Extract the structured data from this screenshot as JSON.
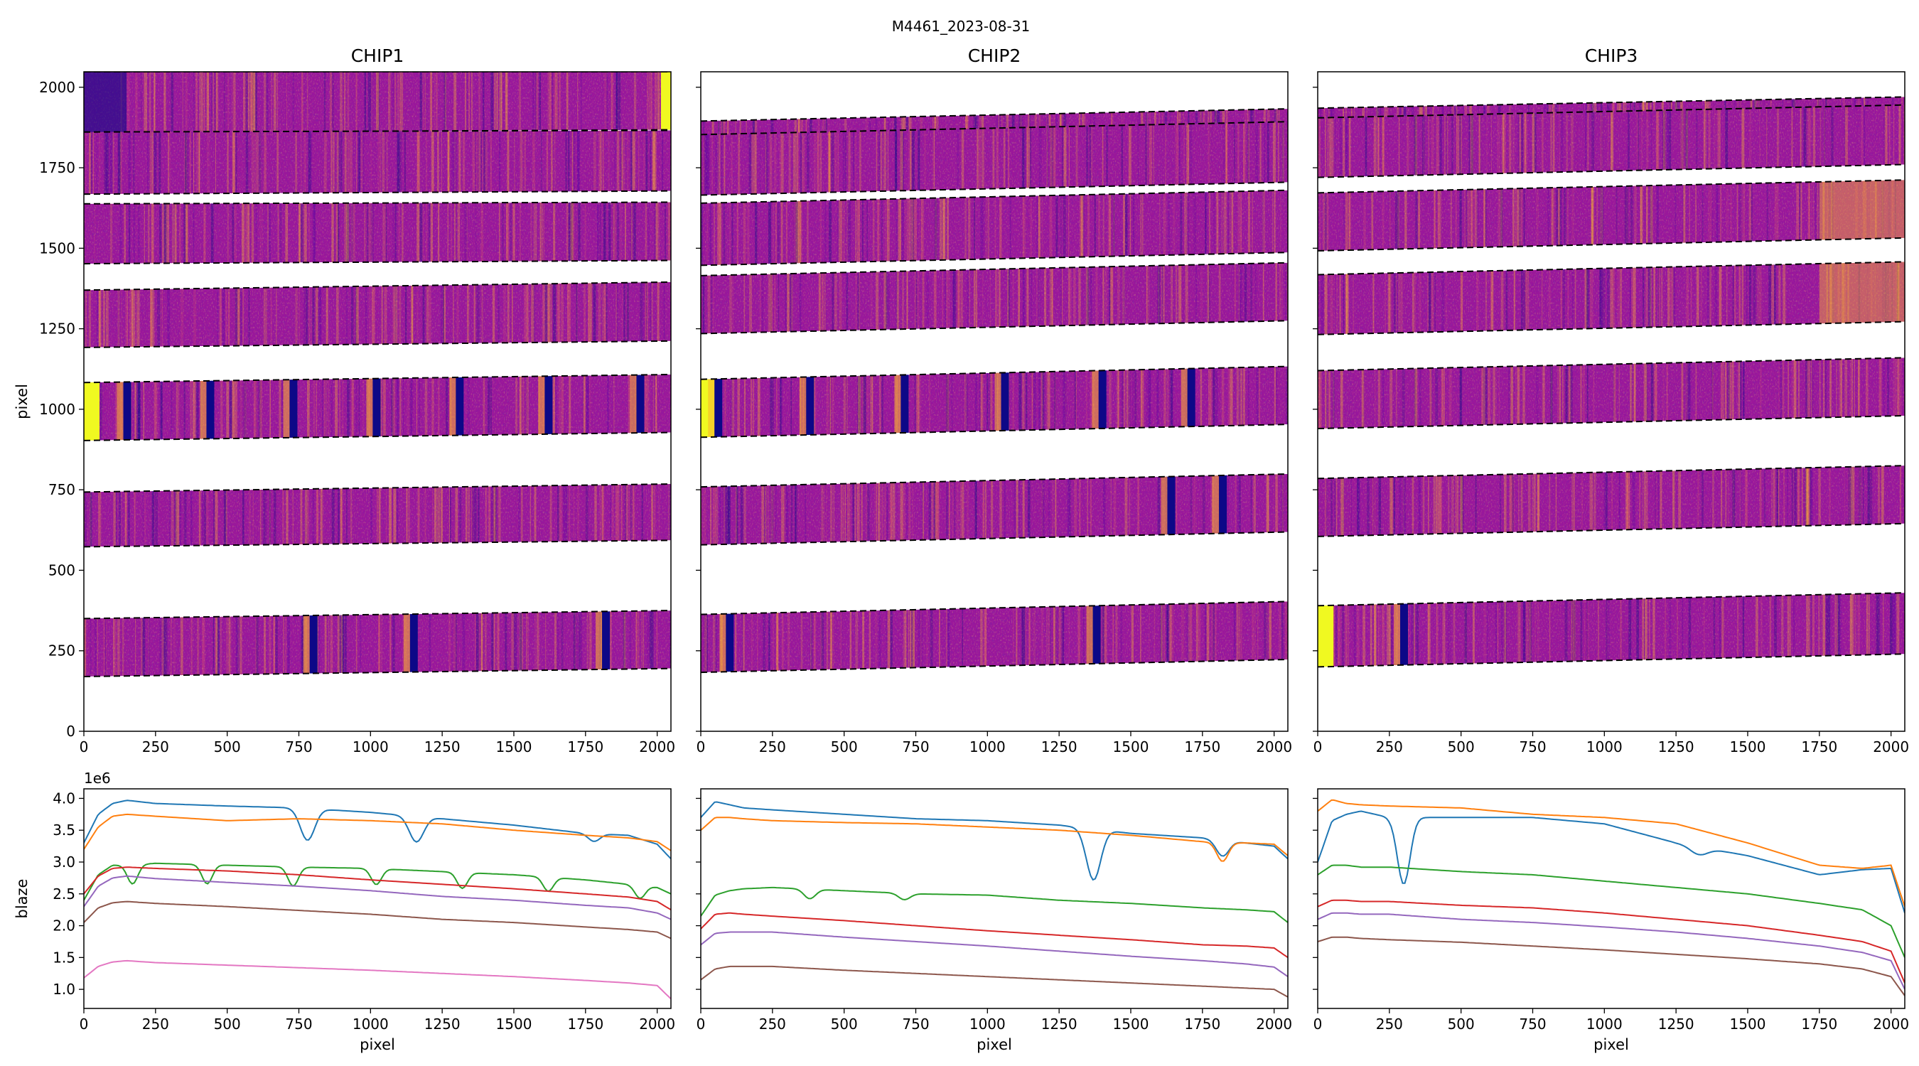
{
  "figure": {
    "suptitle": "M4461_2023-08-31",
    "colormap": [
      "#0d0887",
      "#5b02a3",
      "#9a179b",
      "#cb4678",
      "#eb7852",
      "#fbb32f",
      "#f0f921"
    ],
    "series_colors": [
      "#1f77b4",
      "#ff7f0e",
      "#2ca02c",
      "#d62728",
      "#9467bd",
      "#8c564b",
      "#e377c2"
    ]
  },
  "chart_data": [
    {
      "type": "heatmap",
      "title": "CHIP1",
      "ylabel": "pixel",
      "xlabel": "",
      "xlim": [
        0,
        2048
      ],
      "ylim": [
        0,
        2048
      ],
      "xticks": [
        "0",
        "250",
        "500",
        "750",
        "1000",
        "1250",
        "1500",
        "1750",
        "2000"
      ],
      "yticks": [
        "0",
        "250",
        "500",
        "750",
        "1000",
        "1250",
        "1500",
        "1750",
        "2000"
      ],
      "orders": [
        {
          "top": [
            2048,
            2048
          ],
          "bottom": [
            1858,
            1868
          ]
        },
        {
          "top": [
            1861,
            1866
          ],
          "bottom": [
            1668,
            1678
          ]
        },
        {
          "top": [
            1638,
            1643
          ],
          "bottom": [
            1452,
            1462
          ]
        },
        {
          "top": [
            1370,
            1395
          ],
          "bottom": [
            1192,
            1212
          ]
        },
        {
          "top": [
            1083,
            1108
          ],
          "bottom": [
            903,
            928
          ]
        },
        {
          "top": [
            743,
            768
          ],
          "bottom": [
            573,
            593
          ]
        },
        {
          "top": [
            350,
            375
          ],
          "bottom": [
            170,
            195
          ]
        }
      ],
      "absorption_lines": [
        {
          "order": 4,
          "x": [
            150,
            440,
            730,
            1020,
            1310,
            1620,
            1940
          ]
        },
        {
          "order": 6,
          "x": [
            800,
            1150,
            1820
          ]
        }
      ]
    },
    {
      "type": "heatmap",
      "title": "CHIP2",
      "ylabel": "",
      "xlabel": "",
      "xlim": [
        0,
        2048
      ],
      "ylim": [
        0,
        2048
      ],
      "xticks": [
        "0",
        "250",
        "500",
        "750",
        "1000",
        "1250",
        "1500",
        "1750",
        "2000"
      ],
      "yticks": [],
      "orders": [
        {
          "top": [
            1895,
            1933
          ],
          "bottom": [
            1832,
            1850
          ]
        },
        {
          "top": [
            1853,
            1893
          ],
          "bottom": [
            1665,
            1705
          ]
        },
        {
          "top": [
            1640,
            1680
          ],
          "bottom": [
            1447,
            1487
          ]
        },
        {
          "top": [
            1415,
            1455
          ],
          "bottom": [
            1235,
            1275
          ]
        },
        {
          "top": [
            1093,
            1133
          ],
          "bottom": [
            913,
            953
          ]
        },
        {
          "top": [
            759,
            799
          ],
          "bottom": [
            579,
            619
          ]
        },
        {
          "top": [
            363,
            403
          ],
          "bottom": [
            183,
            223
          ]
        }
      ],
      "absorption_lines": [
        {
          "order": 4,
          "x": [
            60,
            380,
            710,
            1060,
            1400,
            1710
          ]
        },
        {
          "order": 5,
          "x": [
            1640,
            1820
          ]
        },
        {
          "order": 6,
          "x": [
            100,
            1380
          ]
        }
      ]
    },
    {
      "type": "heatmap",
      "title": "CHIP3",
      "ylabel": "",
      "xlabel": "",
      "xlim": [
        0,
        2048
      ],
      "ylim": [
        0,
        2048
      ],
      "xticks": [
        "0",
        "250",
        "500",
        "750",
        "1000",
        "1250",
        "1500",
        "1750",
        "2000"
      ],
      "yticks": [],
      "orders": [
        {
          "top": [
            1935,
            1970
          ],
          "bottom": [
            1890,
            1930
          ]
        },
        {
          "top": [
            1905,
            1945
          ],
          "bottom": [
            1720,
            1760
          ]
        },
        {
          "top": [
            1672,
            1712
          ],
          "bottom": [
            1492,
            1532
          ]
        },
        {
          "top": [
            1418,
            1458
          ],
          "bottom": [
            1232,
            1272
          ]
        },
        {
          "top": [
            1120,
            1160
          ],
          "bottom": [
            940,
            980
          ]
        },
        {
          "top": [
            785,
            825
          ],
          "bottom": [
            605,
            645
          ]
        },
        {
          "top": [
            390,
            430
          ],
          "bottom": [
            200,
            240
          ]
        }
      ],
      "absorption_lines": [
        {
          "order": 6,
          "x": [
            300
          ]
        }
      ]
    },
    {
      "type": "line",
      "title": "",
      "xlabel": "pixel",
      "ylabel": "blaze",
      "offset_text": "1e6",
      "xlim": [
        0,
        2048
      ],
      "ylim": [
        0.7,
        4.15
      ],
      "xticks": [
        "0",
        "250",
        "500",
        "750",
        "1000",
        "1250",
        "1500",
        "1750",
        "2000"
      ],
      "yticks": [
        "1.0",
        "1.5",
        "2.0",
        "2.5",
        "3.0",
        "3.5",
        "4.0"
      ],
      "x": [
        0,
        50,
        100,
        150,
        250,
        500,
        750,
        1000,
        1250,
        1500,
        1750,
        1900,
        2000,
        2048
      ],
      "series": [
        {
          "values": [
            3.3,
            3.75,
            3.92,
            3.97,
            3.92,
            3.88,
            3.85,
            3.78,
            3.68,
            3.58,
            3.45,
            3.42,
            3.28,
            3.05
          ],
          "dips": [
            [
              780,
              0.5,
              25
            ],
            [
              1160,
              0.4,
              25
            ],
            [
              1780,
              0.12,
              20
            ]
          ]
        },
        {
          "values": [
            3.2,
            3.55,
            3.72,
            3.75,
            3.72,
            3.65,
            3.68,
            3.65,
            3.6,
            3.5,
            3.42,
            3.38,
            3.32,
            3.18
          ],
          "dips": []
        },
        {
          "values": [
            2.4,
            2.8,
            2.95,
            2.95,
            2.98,
            2.95,
            2.92,
            2.9,
            2.85,
            2.8,
            2.72,
            2.65,
            2.6,
            2.5
          ],
          "dips": [
            [
              170,
              0.3,
              18
            ],
            [
              430,
              0.3,
              18
            ],
            [
              730,
              0.3,
              18
            ],
            [
              1020,
              0.25,
              18
            ],
            [
              1320,
              0.25,
              18
            ],
            [
              1620,
              0.22,
              18
            ],
            [
              1940,
              0.2,
              18
            ]
          ]
        },
        {
          "values": [
            2.5,
            2.78,
            2.9,
            2.92,
            2.9,
            2.86,
            2.8,
            2.72,
            2.65,
            2.58,
            2.5,
            2.45,
            2.38,
            2.25
          ],
          "dips": []
        },
        {
          "values": [
            2.3,
            2.62,
            2.75,
            2.78,
            2.74,
            2.68,
            2.62,
            2.55,
            2.46,
            2.4,
            2.32,
            2.28,
            2.2,
            2.1
          ],
          "dips": []
        },
        {
          "values": [
            2.05,
            2.28,
            2.36,
            2.38,
            2.35,
            2.3,
            2.24,
            2.18,
            2.1,
            2.05,
            1.98,
            1.94,
            1.9,
            1.8
          ],
          "dips": []
        },
        {
          "values": [
            1.18,
            1.36,
            1.43,
            1.45,
            1.42,
            1.38,
            1.34,
            1.3,
            1.25,
            1.2,
            1.14,
            1.1,
            1.06,
            0.85
          ],
          "dips": []
        }
      ]
    },
    {
      "type": "line",
      "title": "",
      "xlabel": "pixel",
      "ylabel": "",
      "xlim": [
        0,
        2048
      ],
      "ylim": [
        0.7,
        4.15
      ],
      "xticks": [
        "0",
        "250",
        "500",
        "750",
        "1000",
        "1250",
        "1500",
        "1750",
        "2000"
      ],
      "yticks": [],
      "x": [
        0,
        50,
        100,
        150,
        250,
        500,
        750,
        1000,
        1250,
        1500,
        1750,
        1900,
        2000,
        2048
      ],
      "series": [
        {
          "values": [
            3.7,
            3.95,
            3.9,
            3.85,
            3.82,
            3.75,
            3.68,
            3.65,
            3.58,
            3.45,
            3.38,
            3.3,
            3.25,
            3.05
          ],
          "dips": [
            [
              1370,
              0.8,
              25
            ],
            [
              1820,
              0.25,
              22
            ]
          ]
        },
        {
          "values": [
            3.5,
            3.7,
            3.7,
            3.68,
            3.65,
            3.62,
            3.6,
            3.55,
            3.5,
            3.42,
            3.32,
            3.3,
            3.28,
            3.1
          ],
          "dips": [
            [
              1820,
              0.3,
              20
            ]
          ]
        },
        {
          "values": [
            2.15,
            2.48,
            2.55,
            2.58,
            2.6,
            2.55,
            2.5,
            2.48,
            2.4,
            2.35,
            2.28,
            2.25,
            2.22,
            2.05
          ],
          "dips": [
            [
              380,
              0.15,
              20
            ],
            [
              710,
              0.1,
              20
            ]
          ]
        },
        {
          "values": [
            1.95,
            2.18,
            2.2,
            2.18,
            2.15,
            2.08,
            2.0,
            1.92,
            1.85,
            1.78,
            1.7,
            1.68,
            1.65,
            1.5
          ],
          "dips": []
        },
        {
          "values": [
            1.7,
            1.88,
            1.9,
            1.9,
            1.9,
            1.82,
            1.75,
            1.68,
            1.6,
            1.52,
            1.45,
            1.4,
            1.35,
            1.2
          ],
          "dips": []
        },
        {
          "values": [
            1.15,
            1.32,
            1.36,
            1.36,
            1.36,
            1.3,
            1.25,
            1.2,
            1.15,
            1.1,
            1.05,
            1.02,
            1.0,
            0.88
          ],
          "dips": []
        }
      ]
    },
    {
      "type": "line",
      "title": "",
      "xlabel": "pixel",
      "ylabel": "",
      "xlim": [
        0,
        2048
      ],
      "ylim": [
        0.7,
        4.15
      ],
      "xticks": [
        "0",
        "250",
        "500",
        "750",
        "1000",
        "1250",
        "1500",
        "1750",
        "2000"
      ],
      "yticks": [],
      "x": [
        0,
        50,
        100,
        150,
        250,
        500,
        750,
        1000,
        1250,
        1500,
        1750,
        1900,
        2000,
        2048
      ],
      "series": [
        {
          "values": [
            3.0,
            3.65,
            3.75,
            3.8,
            3.7,
            3.7,
            3.7,
            3.6,
            3.3,
            3.1,
            2.8,
            2.88,
            2.9,
            2.2
          ],
          "dips": [
            [
              300,
              1.05,
              22
            ],
            [
              1330,
              0.12,
              30
            ]
          ]
        },
        {
          "values": [
            3.8,
            3.98,
            3.92,
            3.9,
            3.88,
            3.85,
            3.75,
            3.7,
            3.6,
            3.3,
            2.95,
            2.9,
            2.95,
            2.3
          ],
          "dips": []
        },
        {
          "values": [
            2.8,
            2.95,
            2.95,
            2.92,
            2.92,
            2.85,
            2.8,
            2.7,
            2.6,
            2.5,
            2.35,
            2.25,
            2.0,
            1.5
          ],
          "dips": []
        },
        {
          "values": [
            2.3,
            2.4,
            2.4,
            2.38,
            2.38,
            2.32,
            2.28,
            2.2,
            2.1,
            2.0,
            1.85,
            1.75,
            1.6,
            1.1
          ],
          "dips": []
        },
        {
          "values": [
            2.1,
            2.2,
            2.2,
            2.18,
            2.18,
            2.1,
            2.05,
            1.98,
            1.9,
            1.8,
            1.68,
            1.58,
            1.45,
            1.0
          ],
          "dips": []
        },
        {
          "values": [
            1.75,
            1.82,
            1.82,
            1.8,
            1.78,
            1.74,
            1.68,
            1.62,
            1.55,
            1.48,
            1.4,
            1.32,
            1.2,
            0.9
          ],
          "dips": []
        }
      ]
    }
  ]
}
